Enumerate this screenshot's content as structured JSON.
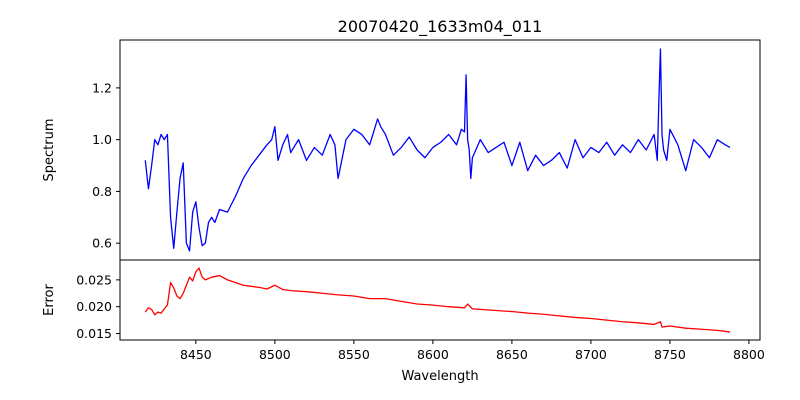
{
  "chart_data": {
    "type": "line",
    "title": "20070420_1633m04_011",
    "xlabel": "Wavelength",
    "xlim": [
      8402,
      8807
    ],
    "xticks": [
      8450,
      8500,
      8550,
      8600,
      8650,
      8700,
      8750,
      8800
    ],
    "panels": [
      {
        "ylabel": "Spectrum",
        "ylim": [
          0.535,
          1.385
        ],
        "yticks": [
          0.6,
          0.8,
          1.0,
          1.2
        ],
        "color": "#0000ff",
        "series": [
          {
            "x": [
              8418,
              8420,
              8422,
              8424,
              8426,
              8428,
              8430,
              8432,
              8434,
              8436,
              8438,
              8440,
              8442,
              8444,
              8446,
              8448,
              8450,
              8452,
              8454,
              8456,
              8458,
              8460,
              8462,
              8465,
              8470,
              8475,
              8480,
              8485,
              8490,
              8495,
              8498,
              8500,
              8502,
              8505,
              8508,
              8510,
              8515,
              8520,
              8525,
              8530,
              8535,
              8538,
              8540,
              8545,
              8550,
              8555,
              8560,
              8565,
              8567,
              8570,
              8575,
              8580,
              8585,
              8590,
              8595,
              8600,
              8605,
              8610,
              8615,
              8618,
              8620,
              8621,
              8622,
              8623,
              8624,
              8625,
              8630,
              8635,
              8640,
              8645,
              8650,
              8655,
              8660,
              8665,
              8670,
              8675,
              8680,
              8685,
              8690,
              8695,
              8700,
              8705,
              8710,
              8715,
              8720,
              8725,
              8730,
              8735,
              8740,
              8742,
              8743,
              8744,
              8745,
              8746,
              8748,
              8750,
              8755,
              8760,
              8765,
              8770,
              8775,
              8780,
              8785,
              8788
            ],
            "y": [
              0.92,
              0.81,
              0.9,
              1.0,
              0.98,
              1.02,
              1.0,
              1.02,
              0.7,
              0.58,
              0.72,
              0.85,
              0.91,
              0.6,
              0.57,
              0.72,
              0.76,
              0.66,
              0.59,
              0.6,
              0.68,
              0.7,
              0.68,
              0.73,
              0.72,
              0.78,
              0.85,
              0.9,
              0.94,
              0.98,
              1.0,
              1.05,
              0.92,
              0.98,
              1.02,
              0.95,
              1.0,
              0.92,
              0.97,
              0.94,
              1.02,
              0.98,
              0.85,
              1.0,
              1.04,
              1.02,
              0.98,
              1.08,
              1.05,
              1.02,
              0.94,
              0.97,
              1.01,
              0.96,
              0.93,
              0.97,
              0.99,
              1.02,
              0.98,
              1.04,
              1.03,
              1.25,
              1.0,
              0.96,
              0.85,
              0.93,
              1.0,
              0.95,
              0.97,
              0.99,
              0.9,
              0.99,
              0.88,
              0.94,
              0.9,
              0.92,
              0.95,
              0.89,
              1.0,
              0.93,
              0.97,
              0.95,
              0.99,
              0.94,
              0.98,
              0.95,
              1.0,
              0.96,
              1.02,
              0.92,
              1.15,
              1.35,
              1.02,
              0.96,
              0.92,
              1.04,
              0.98,
              0.88,
              1.0,
              0.97,
              0.93,
              1.0,
              0.98,
              0.97
            ]
          }
        ]
      },
      {
        "ylabel": "Error",
        "ylim": [
          0.0138,
          0.0287
        ],
        "yticks": [
          0.015,
          0.02,
          0.025
        ],
        "color": "#ff0000",
        "series": [
          {
            "x": [
              8418,
              8420,
              8422,
              8424,
              8426,
              8428,
              8430,
              8432,
              8434,
              8436,
              8438,
              8440,
              8442,
              8444,
              8446,
              8448,
              8450,
              8452,
              8454,
              8456,
              8460,
              8465,
              8470,
              8475,
              8480,
              8485,
              8490,
              8495,
              8500,
              8505,
              8510,
              8520,
              8530,
              8540,
              8550,
              8560,
              8570,
              8580,
              8590,
              8600,
              8610,
              8620,
              8622,
              8625,
              8630,
              8640,
              8650,
              8660,
              8670,
              8680,
              8690,
              8700,
              8710,
              8720,
              8730,
              8740,
              8744,
              8745,
              8750,
              8760,
              8770,
              8780,
              8788
            ],
            "y": [
              0.019,
              0.0198,
              0.0195,
              0.0185,
              0.019,
              0.0188,
              0.0196,
              0.0203,
              0.0245,
              0.0235,
              0.022,
              0.0215,
              0.0225,
              0.024,
              0.0255,
              0.0248,
              0.0265,
              0.0272,
              0.0255,
              0.025,
              0.0255,
              0.0258,
              0.025,
              0.0245,
              0.024,
              0.0238,
              0.0236,
              0.0233,
              0.024,
              0.0232,
              0.023,
              0.0228,
              0.0225,
              0.0222,
              0.022,
              0.0215,
              0.0215,
              0.021,
              0.0205,
              0.0203,
              0.02,
              0.0198,
              0.0205,
              0.0196,
              0.0195,
              0.0193,
              0.0191,
              0.0188,
              0.0186,
              0.0183,
              0.018,
              0.0178,
              0.0175,
              0.0172,
              0.017,
              0.0167,
              0.0172,
              0.0162,
              0.0164,
              0.016,
              0.0158,
              0.0156,
              0.0153
            ]
          }
        ]
      }
    ]
  }
}
